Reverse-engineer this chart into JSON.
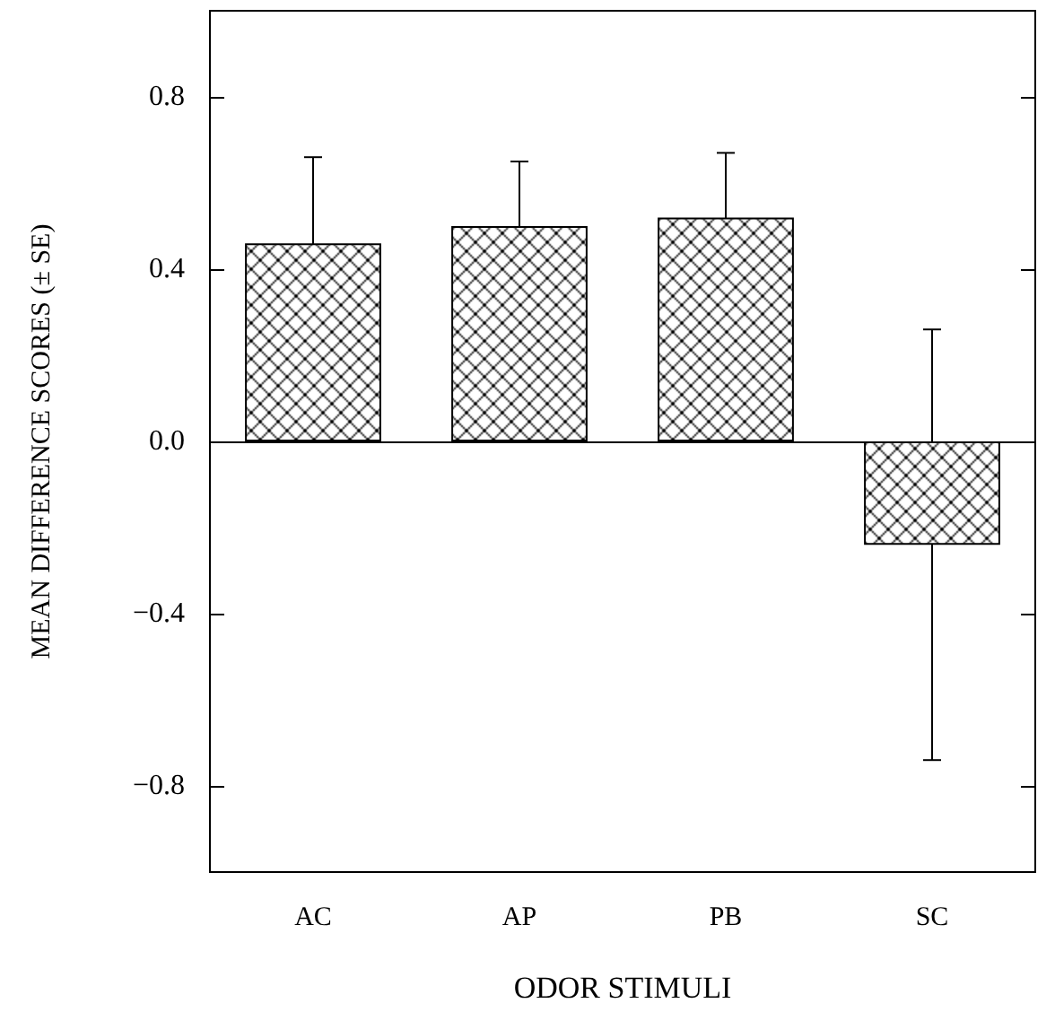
{
  "chart_data": {
    "type": "bar",
    "xlabel": "ODOR STIMULI",
    "ylabel": "MEAN DIFFERENCE SCORES (± SE)",
    "categories": [
      "AC",
      "AP",
      "PB",
      "SC"
    ],
    "values": [
      0.46,
      0.5,
      0.52,
      -0.24
    ],
    "errors": [
      0.2,
      0.15,
      0.15,
      0.5
    ],
    "color": "#000000",
    "ylim": [
      -1.0,
      1.0
    ],
    "yticks": [
      {
        "value": -0.8,
        "label": "−0.8"
      },
      {
        "value": -0.4,
        "label": "−0.4"
      },
      {
        "value": 0,
        "label": "0.0"
      },
      {
        "value": 0.4,
        "label": "0.4"
      },
      {
        "value": 0.8,
        "label": "0.8"
      }
    ],
    "ref_lines": [
      {
        "axis": "y",
        "value": 0,
        "color": "#000000",
        "line_style": "solid"
      }
    ],
    "grid": false
  }
}
